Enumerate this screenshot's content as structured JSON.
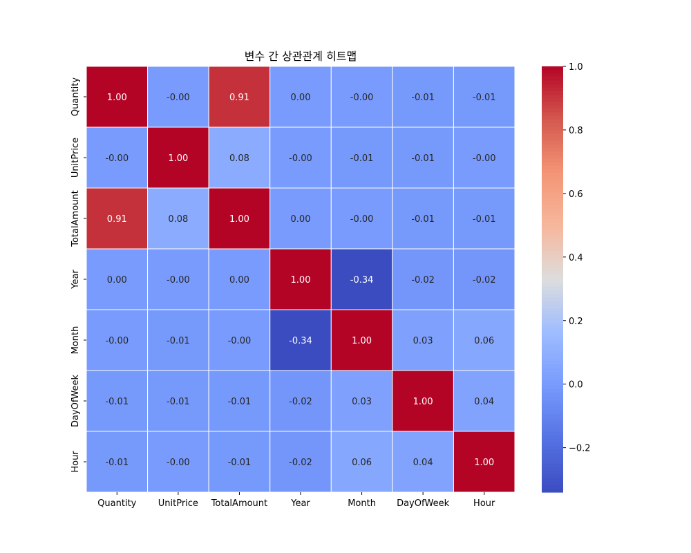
{
  "chart_data": {
    "type": "heatmap",
    "title": "변수 간 상관관계 히트맵",
    "xlabel": "",
    "ylabel": "",
    "rows": [
      "Quantity",
      "UnitPrice",
      "TotalAmount",
      "Year",
      "Month",
      "DayOfWeek",
      "Hour"
    ],
    "columns": [
      "Quantity",
      "UnitPrice",
      "TotalAmount",
      "Year",
      "Month",
      "DayOfWeek",
      "Hour"
    ],
    "values": [
      [
        1.0,
        -0.0,
        0.91,
        0.0,
        -0.0,
        -0.01,
        -0.01
      ],
      [
        -0.0,
        1.0,
        0.08,
        -0.0,
        -0.01,
        -0.01,
        -0.0
      ],
      [
        0.91,
        0.08,
        1.0,
        0.0,
        -0.0,
        -0.01,
        -0.01
      ],
      [
        0.0,
        -0.0,
        0.0,
        1.0,
        -0.34,
        -0.02,
        -0.02
      ],
      [
        -0.0,
        -0.01,
        -0.0,
        -0.34,
        1.0,
        0.03,
        0.06
      ],
      [
        -0.01,
        -0.01,
        -0.01,
        -0.02,
        0.03,
        1.0,
        0.04
      ],
      [
        -0.01,
        -0.0,
        -0.01,
        -0.02,
        0.06,
        0.04,
        1.0
      ]
    ],
    "annotations": [
      [
        "1.00",
        "-0.00",
        "0.91",
        "0.00",
        "-0.00",
        "-0.01",
        "-0.01"
      ],
      [
        "-0.00",
        "1.00",
        "0.08",
        "-0.00",
        "-0.01",
        "-0.01",
        "-0.00"
      ],
      [
        "0.91",
        "0.08",
        "1.00",
        "0.00",
        "-0.00",
        "-0.01",
        "-0.01"
      ],
      [
        "0.00",
        "-0.00",
        "0.00",
        "1.00",
        "-0.34",
        "-0.02",
        "-0.02"
      ],
      [
        "-0.00",
        "-0.01",
        "-0.00",
        "-0.34",
        "1.00",
        "0.03",
        "0.06"
      ],
      [
        "-0.01",
        "-0.01",
        "-0.01",
        "-0.02",
        "0.03",
        "1.00",
        "0.04"
      ],
      [
        "-0.01",
        "-0.00",
        "-0.01",
        "-0.02",
        "0.06",
        "0.04",
        "1.00"
      ]
    ],
    "colormap": "coolwarm",
    "color_range": [
      -0.34,
      1.0
    ],
    "colorbar": {
      "ticks": [
        1.0,
        0.8,
        0.6,
        0.4,
        0.2,
        0.0,
        -0.2
      ],
      "tick_labels": [
        "1.0",
        "0.8",
        "0.6",
        "0.4",
        "0.2",
        "0.0",
        "−0.2"
      ]
    },
    "cell_border_color": "#ffffff",
    "grid": false,
    "legend": "colorbar-right"
  }
}
